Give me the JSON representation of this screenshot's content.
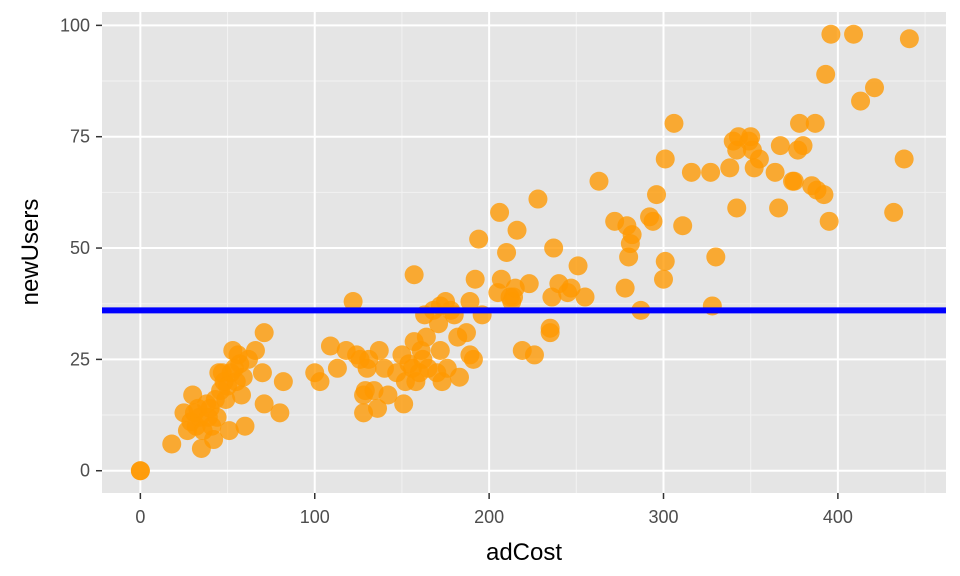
{
  "chart_data": {
    "type": "scatter",
    "xlabel": "adCost",
    "ylabel": "newUsers",
    "xlim": [
      -22,
      462
    ],
    "ylim": [
      -5,
      103
    ],
    "x_ticks": [
      0,
      100,
      200,
      300,
      400
    ],
    "y_ticks": [
      0,
      25,
      50,
      75,
      100
    ],
    "x_tick_labels": [
      "0",
      "100",
      "200",
      "300",
      "400"
    ],
    "y_tick_labels": [
      "0",
      "25",
      "50",
      "75",
      "100"
    ],
    "grid": true,
    "hline": {
      "y": 36,
      "color": "#0000ff"
    },
    "point_color": "#ff9900",
    "panel_background": "#e5e5e5",
    "points": [
      [
        0,
        0
      ],
      [
        0,
        0
      ],
      [
        18,
        6
      ],
      [
        25,
        13
      ],
      [
        27,
        9
      ],
      [
        29,
        11
      ],
      [
        30,
        17
      ],
      [
        31,
        13
      ],
      [
        32,
        10
      ],
      [
        33,
        14
      ],
      [
        34,
        12
      ],
      [
        35,
        5
      ],
      [
        36,
        9
      ],
      [
        38,
        15
      ],
      [
        39,
        12
      ],
      [
        40,
        14
      ],
      [
        41,
        10
      ],
      [
        42,
        7
      ],
      [
        43,
        16
      ],
      [
        44,
        12
      ],
      [
        45,
        22
      ],
      [
        46,
        18
      ],
      [
        47,
        22
      ],
      [
        48,
        20
      ],
      [
        49,
        16
      ],
      [
        50,
        19
      ],
      [
        51,
        9
      ],
      [
        52,
        22
      ],
      [
        53,
        27
      ],
      [
        54,
        23
      ],
      [
        55,
        20
      ],
      [
        56,
        26
      ],
      [
        57,
        24
      ],
      [
        58,
        17
      ],
      [
        59,
        21
      ],
      [
        60,
        10
      ],
      [
        62,
        25
      ],
      [
        66,
        27
      ],
      [
        70,
        22
      ],
      [
        71,
        31
      ],
      [
        71,
        15
      ],
      [
        80,
        13
      ],
      [
        82,
        20
      ],
      [
        100,
        22
      ],
      [
        103,
        20
      ],
      [
        109,
        28
      ],
      [
        113,
        23
      ],
      [
        118,
        27
      ],
      [
        122,
        38
      ],
      [
        124,
        26
      ],
      [
        126,
        25
      ],
      [
        128,
        13
      ],
      [
        128,
        17
      ],
      [
        129,
        18
      ],
      [
        130,
        23
      ],
      [
        131,
        25
      ],
      [
        134,
        18
      ],
      [
        136,
        14
      ],
      [
        137,
        27
      ],
      [
        140,
        23
      ],
      [
        142,
        17
      ],
      [
        147,
        22
      ],
      [
        150,
        26
      ],
      [
        151,
        15
      ],
      [
        152,
        20
      ],
      [
        154,
        24
      ],
      [
        156,
        23
      ],
      [
        157,
        44
      ],
      [
        157,
        29
      ],
      [
        158,
        20
      ],
      [
        160,
        22
      ],
      [
        161,
        27
      ],
      [
        162,
        25
      ],
      [
        163,
        35
      ],
      [
        164,
        30
      ],
      [
        165,
        23
      ],
      [
        168,
        36
      ],
      [
        170,
        22
      ],
      [
        171,
        33
      ],
      [
        172,
        37
      ],
      [
        172,
        27
      ],
      [
        173,
        20
      ],
      [
        175,
        38
      ],
      [
        176,
        23
      ],
      [
        178,
        36
      ],
      [
        180,
        35
      ],
      [
        182,
        30
      ],
      [
        183,
        21
      ],
      [
        187,
        31
      ],
      [
        189,
        38
      ],
      [
        189,
        26
      ],
      [
        191,
        25
      ],
      [
        192,
        43
      ],
      [
        194,
        52
      ],
      [
        196,
        35
      ],
      [
        205,
        40
      ],
      [
        206,
        58
      ],
      [
        207,
        43
      ],
      [
        210,
        49
      ],
      [
        212,
        39
      ],
      [
        213,
        38
      ],
      [
        214,
        39
      ],
      [
        215,
        41
      ],
      [
        216,
        54
      ],
      [
        219,
        27
      ],
      [
        223,
        42
      ],
      [
        226,
        26
      ],
      [
        228,
        61
      ],
      [
        235,
        31
      ],
      [
        235,
        32
      ],
      [
        236,
        39
      ],
      [
        237,
        50
      ],
      [
        240,
        42
      ],
      [
        245,
        40
      ],
      [
        247,
        41
      ],
      [
        251,
        46
      ],
      [
        255,
        39
      ],
      [
        263,
        65
      ],
      [
        272,
        56
      ],
      [
        278,
        41
      ],
      [
        279,
        55
      ],
      [
        280,
        48
      ],
      [
        281,
        51
      ],
      [
        282,
        53
      ],
      [
        287,
        36
      ],
      [
        292,
        57
      ],
      [
        294,
        56
      ],
      [
        296,
        62
      ],
      [
        300,
        43
      ],
      [
        301,
        47
      ],
      [
        301,
        70
      ],
      [
        306,
        78
      ],
      [
        311,
        55
      ],
      [
        316,
        67
      ],
      [
        327,
        67
      ],
      [
        328,
        37
      ],
      [
        330,
        48
      ],
      [
        338,
        68
      ],
      [
        340,
        74
      ],
      [
        342,
        59
      ],
      [
        342,
        72
      ],
      [
        343,
        75
      ],
      [
        349,
        74
      ],
      [
        350,
        75
      ],
      [
        351,
        72
      ],
      [
        352,
        68
      ],
      [
        355,
        70
      ],
      [
        364,
        67
      ],
      [
        366,
        59
      ],
      [
        367,
        73
      ],
      [
        374,
        65
      ],
      [
        375,
        65
      ],
      [
        377,
        72
      ],
      [
        378,
        78
      ],
      [
        380,
        73
      ],
      [
        385,
        64
      ],
      [
        387,
        78
      ],
      [
        388,
        63
      ],
      [
        392,
        62
      ],
      [
        393,
        89
      ],
      [
        395,
        56
      ],
      [
        396,
        98
      ],
      [
        409,
        98
      ],
      [
        413,
        83
      ],
      [
        421,
        86
      ],
      [
        432,
        58
      ],
      [
        438,
        70
      ],
      [
        441,
        97
      ]
    ]
  }
}
